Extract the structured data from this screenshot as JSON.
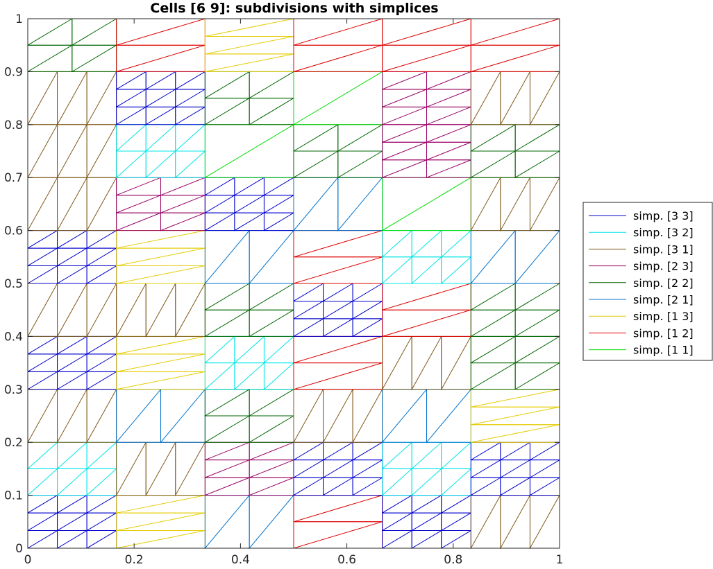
{
  "chart_data": {
    "type": "line",
    "title": "Cells [6  9]: subdivisions with simplices",
    "xlabel": "",
    "ylabel": "",
    "xlim": [
      0,
      1
    ],
    "ylim": [
      0,
      1
    ],
    "grid": false,
    "legend_position": "outside-right",
    "x_ticks": [
      0,
      0.2,
      0.4,
      0.6,
      0.8,
      1
    ],
    "x_tick_labels": [
      "0",
      "0.2",
      "0.4",
      "0.6",
      "0.8",
      "1"
    ],
    "y_ticks": [
      0,
      0.1,
      0.2,
      0.3,
      0.4,
      0.5,
      0.6,
      0.7,
      0.8,
      0.9,
      1
    ],
    "y_tick_labels": [
      "0",
      "0.1",
      "0.2",
      "0.3",
      "0.4",
      "0.5",
      "0.6",
      "0.7",
      "0.8",
      "0.9",
      "1"
    ],
    "cells": [
      6,
      9
    ],
    "series": [
      {
        "name": "simp. [3  3]",
        "color": "#0000cc",
        "n": 3,
        "m": 3
      },
      {
        "name": "simp. [3  2]",
        "color": "#00e5e5",
        "n": 3,
        "m": 2
      },
      {
        "name": "simp. [3  1]",
        "color": "#7f5a1a",
        "n": 3,
        "m": 1
      },
      {
        "name": "simp. [2  3]",
        "color": "#990066",
        "n": 2,
        "m": 3
      },
      {
        "name": "simp. [2  2]",
        "color": "#006600",
        "n": 2,
        "m": 2
      },
      {
        "name": "simp. [2  1]",
        "color": "#0072cc",
        "n": 2,
        "m": 1
      },
      {
        "name": "simp. [1  3]",
        "color": "#e5cc00",
        "n": 1,
        "m": 3
      },
      {
        "name": "simp. [1  2]",
        "color": "#dd0000",
        "n": 1,
        "m": 2
      },
      {
        "name": "simp. [1  1]",
        "color": "#00dd00",
        "n": 1,
        "m": 1
      }
    ],
    "cell_series": [
      [
        0,
        6,
        5,
        7,
        0,
        2
      ],
      [
        1,
        2,
        3,
        0,
        1,
        0
      ],
      [
        2,
        5,
        4,
        2,
        5,
        6
      ],
      [
        0,
        6,
        1,
        7,
        2,
        4
      ],
      [
        2,
        2,
        4,
        0,
        7,
        4
      ],
      [
        0,
        6,
        5,
        7,
        1,
        5
      ],
      [
        2,
        3,
        0,
        5,
        8,
        2
      ],
      [
        2,
        1,
        8,
        4,
        3,
        4
      ],
      [
        2,
        0,
        4,
        8,
        3,
        2
      ],
      [
        4,
        7,
        6,
        7,
        7,
        7
      ]
    ]
  }
}
